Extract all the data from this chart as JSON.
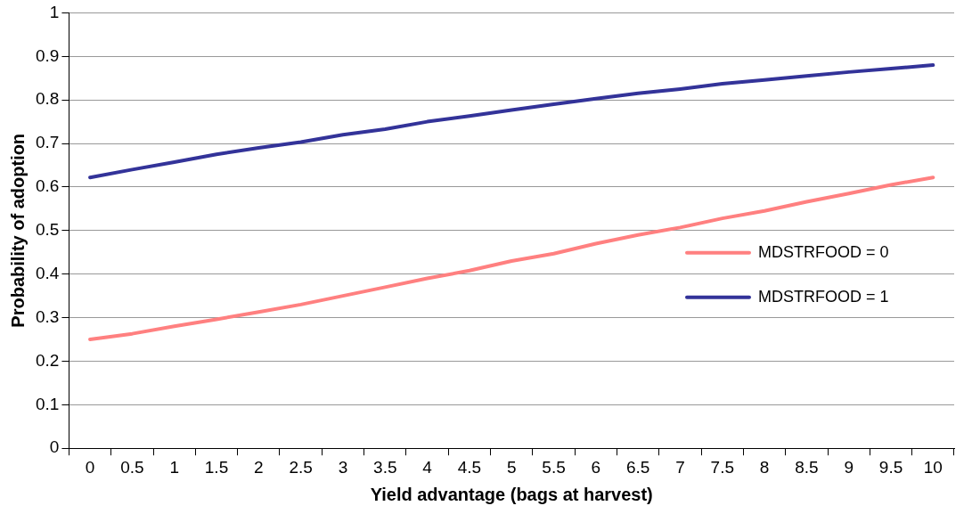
{
  "chart_data": {
    "type": "line",
    "xlabel": "Yield advantage (bags at harvest)",
    "ylabel": "Probability of adoption",
    "categories": [
      "0",
      "0.5",
      "1",
      "1.5",
      "2",
      "2.5",
      "3",
      "3.5",
      "4",
      "4.5",
      "5",
      "5.5",
      "6",
      "6.5",
      "7",
      "7.5",
      "8",
      "8.5",
      "9",
      "9.5",
      "10"
    ],
    "series": [
      {
        "name": "MDSTRFOOD = 0",
        "color": "#ff8080",
        "values": [
          0.25,
          0.263,
          0.28,
          0.296,
          0.313,
          0.33,
          0.35,
          0.37,
          0.39,
          0.408,
          0.43,
          0.447,
          0.47,
          0.49,
          0.507,
          0.528,
          0.545,
          0.566,
          0.585,
          0.605,
          0.622
        ]
      },
      {
        "name": "MDSTRFOOD = 1",
        "color": "#333399",
        "values": [
          0.622,
          0.64,
          0.657,
          0.675,
          0.69,
          0.703,
          0.72,
          0.733,
          0.75,
          0.763,
          0.777,
          0.79,
          0.803,
          0.815,
          0.825,
          0.837,
          0.846,
          0.855,
          0.864,
          0.872,
          0.88
        ]
      }
    ],
    "ylim": [
      0,
      1
    ],
    "yticks": [
      0,
      0.1,
      0.2,
      0.3,
      0.4,
      0.5,
      0.6,
      0.7,
      0.8,
      0.9,
      1
    ],
    "grid": "y",
    "legend": "right",
    "marker": "none",
    "line_style": "solid"
  }
}
